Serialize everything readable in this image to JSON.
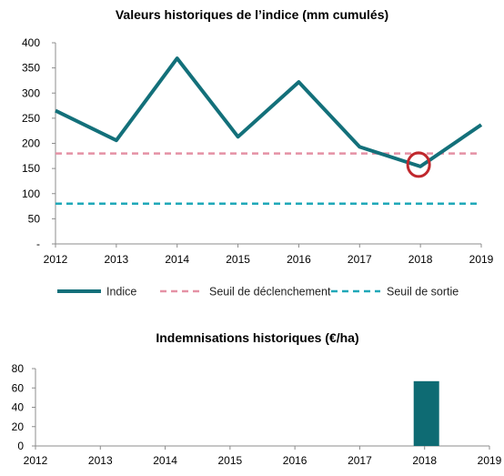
{
  "colors": {
    "index_line": "#13707A",
    "trigger_line": "#E591A5",
    "exit_line": "#1FA8B8",
    "bar": "#0E6B73",
    "highlight_circle": "#C0282D",
    "axis": "#8C8C8C"
  },
  "chart_data": [
    {
      "type": "line",
      "title": "Valeurs historiques de l’indice (mm cumulés)",
      "x": [
        2012,
        2013,
        2014,
        2015,
        2016,
        2017,
        2018,
        2019
      ],
      "x_tick_labels": [
        "2012",
        "2013",
        "2014",
        "2015",
        "2016",
        "2017",
        "2018",
        "2019"
      ],
      "y_tick_labels": [
        "-",
        "50",
        "100",
        "150",
        "200",
        "250",
        "300",
        "350",
        "400"
      ],
      "ylim": [
        0,
        400
      ],
      "grid": false,
      "legend_position": "bottom",
      "series": [
        {
          "name": "Indice",
          "style": "solid",
          "values": [
            265,
            206,
            369,
            213,
            322,
            193,
            154,
            237
          ]
        },
        {
          "name": "Seuil de déclenchement",
          "style": "dashed",
          "values": [
            180,
            180,
            180,
            180,
            180,
            180,
            180,
            180
          ]
        },
        {
          "name": "Seuil de sortie",
          "style": "dashed",
          "values": [
            80,
            80,
            80,
            80,
            80,
            80,
            80,
            80
          ]
        }
      ],
      "annotations": [
        {
          "type": "circle",
          "x": 2018,
          "y": 154,
          "meaning": "highlighted point"
        }
      ]
    },
    {
      "type": "bar",
      "title": "Indemnisations historiques (€/ha)",
      "categories": [
        "2012",
        "2013",
        "2014",
        "2015",
        "2016",
        "2017",
        "2018",
        "2019"
      ],
      "values": [
        0,
        0,
        0,
        0,
        0,
        0,
        67,
        0
      ],
      "y_tick_labels": [
        "0",
        "20",
        "40",
        "60",
        "80"
      ],
      "ylim": [
        0,
        80
      ],
      "grid": false
    }
  ]
}
